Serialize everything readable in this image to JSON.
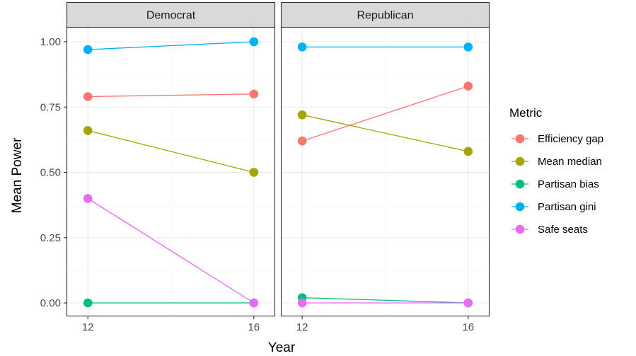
{
  "chart_data": {
    "type": "line",
    "xlabel": "Year",
    "ylabel": "Mean Power",
    "x": [
      12,
      16
    ],
    "ylim": [
      0,
      1.05
    ],
    "y_ticks": [
      "0.00",
      "0.25",
      "0.50",
      "0.75",
      "1.00"
    ],
    "y_tick_values": [
      0,
      0.25,
      0.5,
      0.75,
      1.0
    ],
    "x_ticks": [
      "12",
      "16"
    ],
    "grid": true,
    "legend": {
      "title": "Metric",
      "placement": "right"
    },
    "panels": [
      {
        "label": "Democrat",
        "series": [
          {
            "name": "Efficiency gap",
            "color": "#F8766D",
            "values": [
              0.79,
              0.8
            ]
          },
          {
            "name": "Mean median",
            "color": "#A3A500",
            "values": [
              0.66,
              0.5
            ]
          },
          {
            "name": "Partisan bias",
            "color": "#00BF7D",
            "values": [
              0.0,
              0.0
            ]
          },
          {
            "name": "Partisan gini",
            "color": "#00B0F6",
            "values": [
              0.97,
              1.0
            ]
          },
          {
            "name": "Safe seats",
            "color": "#E76BF3",
            "values": [
              0.4,
              0.0
            ]
          }
        ]
      },
      {
        "label": "Republican",
        "series": [
          {
            "name": "Efficiency gap",
            "color": "#F8766D",
            "values": [
              0.62,
              0.83
            ]
          },
          {
            "name": "Mean median",
            "color": "#A3A500",
            "values": [
              0.72,
              0.58
            ]
          },
          {
            "name": "Partisan bias",
            "color": "#00BF7D",
            "values": [
              0.02,
              0.0
            ]
          },
          {
            "name": "Partisan gini",
            "color": "#00B0F6",
            "values": [
              0.98,
              0.98
            ]
          },
          {
            "name": "Safe seats",
            "color": "#E76BF3",
            "values": [
              0.0,
              0.0
            ]
          }
        ]
      }
    ]
  }
}
